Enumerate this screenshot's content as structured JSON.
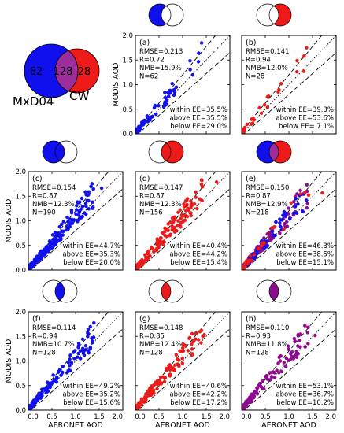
{
  "venn_main": {
    "left_label": "MxD04",
    "right_label": "CW",
    "left_only": "62",
    "overlap": "128",
    "right_only": "28"
  },
  "colors": {
    "blue": "#1010ee",
    "red": "#ee1a1a",
    "purple": "#8e0a8e",
    "overlap_purple": "#9b2e9b",
    "axis": "#000000"
  },
  "axes_text": {
    "x_ticks": [
      "0.0",
      "0.5",
      "1.0",
      "1.5",
      "2.0"
    ],
    "y_ticks": [
      "0.0",
      "0.5",
      "1.0",
      "1.5",
      "2.0"
    ]
  },
  "chart_data": [
    {
      "type": "scatter",
      "panel": "(a)",
      "venn": "left-only",
      "xlabel": "",
      "ylabel": "MODIS AOD",
      "xlim": [
        0,
        2
      ],
      "ylim": [
        0,
        2
      ],
      "grid": false,
      "stats": [
        "RMSE=0.213",
        "R=0.72",
        "NMB=15.9%",
        "N=62"
      ],
      "ee": [
        "within EE=35.5%",
        "above EE=35.5%",
        "below EE=29.0%"
      ],
      "series": [
        {
          "color": "blue",
          "count": 62
        }
      ]
    },
    {
      "type": "scatter",
      "panel": "(b)",
      "venn": "right-only",
      "xlabel": "",
      "ylabel": "",
      "xlim": [
        0,
        2
      ],
      "ylim": [
        0,
        2
      ],
      "grid": false,
      "stats": [
        "RMSE=0.141",
        "R=0.94",
        "NMB=12.0%",
        "N=28"
      ],
      "ee": [
        "within EE=39.3%",
        "above EE=53.6%",
        "below EE= 7.1%"
      ],
      "series": [
        {
          "color": "red",
          "count": 28
        }
      ]
    },
    {
      "type": "scatter",
      "panel": "(c)",
      "venn": "left-full",
      "xlabel": "",
      "ylabel": "MODIS AOD",
      "xlim": [
        0,
        2
      ],
      "ylim": [
        0,
        2
      ],
      "grid": false,
      "stats": [
        "RMSE=0.154",
        "R=0.87",
        "NMB=12.3%",
        "N=190"
      ],
      "ee": [
        "within EE=44.7%",
        "above EE=35.3%",
        "below EE=20.0%"
      ],
      "series": [
        {
          "color": "blue",
          "count": 190
        }
      ]
    },
    {
      "type": "scatter",
      "panel": "(d)",
      "venn": "right-full",
      "xlabel": "",
      "ylabel": "",
      "xlim": [
        0,
        2
      ],
      "ylim": [
        0,
        2
      ],
      "grid": false,
      "stats": [
        "RMSE=0.147",
        "R=0.87",
        "NMB=12.3%",
        "N=156"
      ],
      "ee": [
        "within EE=40.4%",
        "above EE=44.2%",
        "below EE=15.4%"
      ],
      "series": [
        {
          "color": "red",
          "count": 156
        }
      ]
    },
    {
      "type": "scatter",
      "panel": "(e)",
      "venn": "union",
      "xlabel": "",
      "ylabel": "",
      "xlim": [
        0,
        2
      ],
      "ylim": [
        0,
        2
      ],
      "grid": false,
      "stats": [
        "RMSE=0.150",
        "R=0.87",
        "NMB=12.9%",
        "N=218"
      ],
      "ee": [
        "within EE=46.3%",
        "above EE=38.5%",
        "below EE=15.1%"
      ],
      "series": [
        {
          "color": "purple",
          "count": 128
        },
        {
          "color": "blue",
          "count": 62
        },
        {
          "color": "red",
          "count": 28
        }
      ]
    },
    {
      "type": "scatter",
      "panel": "(f)",
      "venn": "intersect-blue",
      "xlabel": "AERONET AOD",
      "ylabel": "MODIS AOD",
      "xlim": [
        0,
        2
      ],
      "ylim": [
        0,
        2
      ],
      "grid": false,
      "stats": [
        "RMSE=0.114",
        "R=0.94",
        "NMB=10.7%",
        "N=128"
      ],
      "ee": [
        "within EE=49.2%",
        "above EE=35.2%",
        "below EE=15.6%"
      ],
      "series": [
        {
          "color": "blue",
          "count": 128
        }
      ]
    },
    {
      "type": "scatter",
      "panel": "(g)",
      "venn": "intersect-red",
      "xlabel": "AERONET AOD",
      "ylabel": "",
      "xlim": [
        0,
        2
      ],
      "ylim": [
        0,
        2
      ],
      "grid": false,
      "stats": [
        "RMSE=0.148",
        "R=0.85",
        "NMB=12.4%",
        "N=128"
      ],
      "ee": [
        "within EE=40.6%",
        "above EE=42.2%",
        "below EE=17.2%"
      ],
      "series": [
        {
          "color": "red",
          "count": 128
        }
      ]
    },
    {
      "type": "scatter",
      "panel": "(h)",
      "venn": "intersect-purple",
      "xlabel": "AERONET AOD",
      "ylabel": "",
      "xlim": [
        0,
        2
      ],
      "ylim": [
        0,
        2
      ],
      "grid": false,
      "stats": [
        "RMSE=0.110",
        "R=0.93",
        "NMB=11.8%",
        "N=128"
      ],
      "ee": [
        "within EE=53.1%",
        "above EE=36.7%",
        "below EE=10.2%"
      ],
      "series": [
        {
          "color": "purple",
          "count": 128
        }
      ]
    }
  ]
}
